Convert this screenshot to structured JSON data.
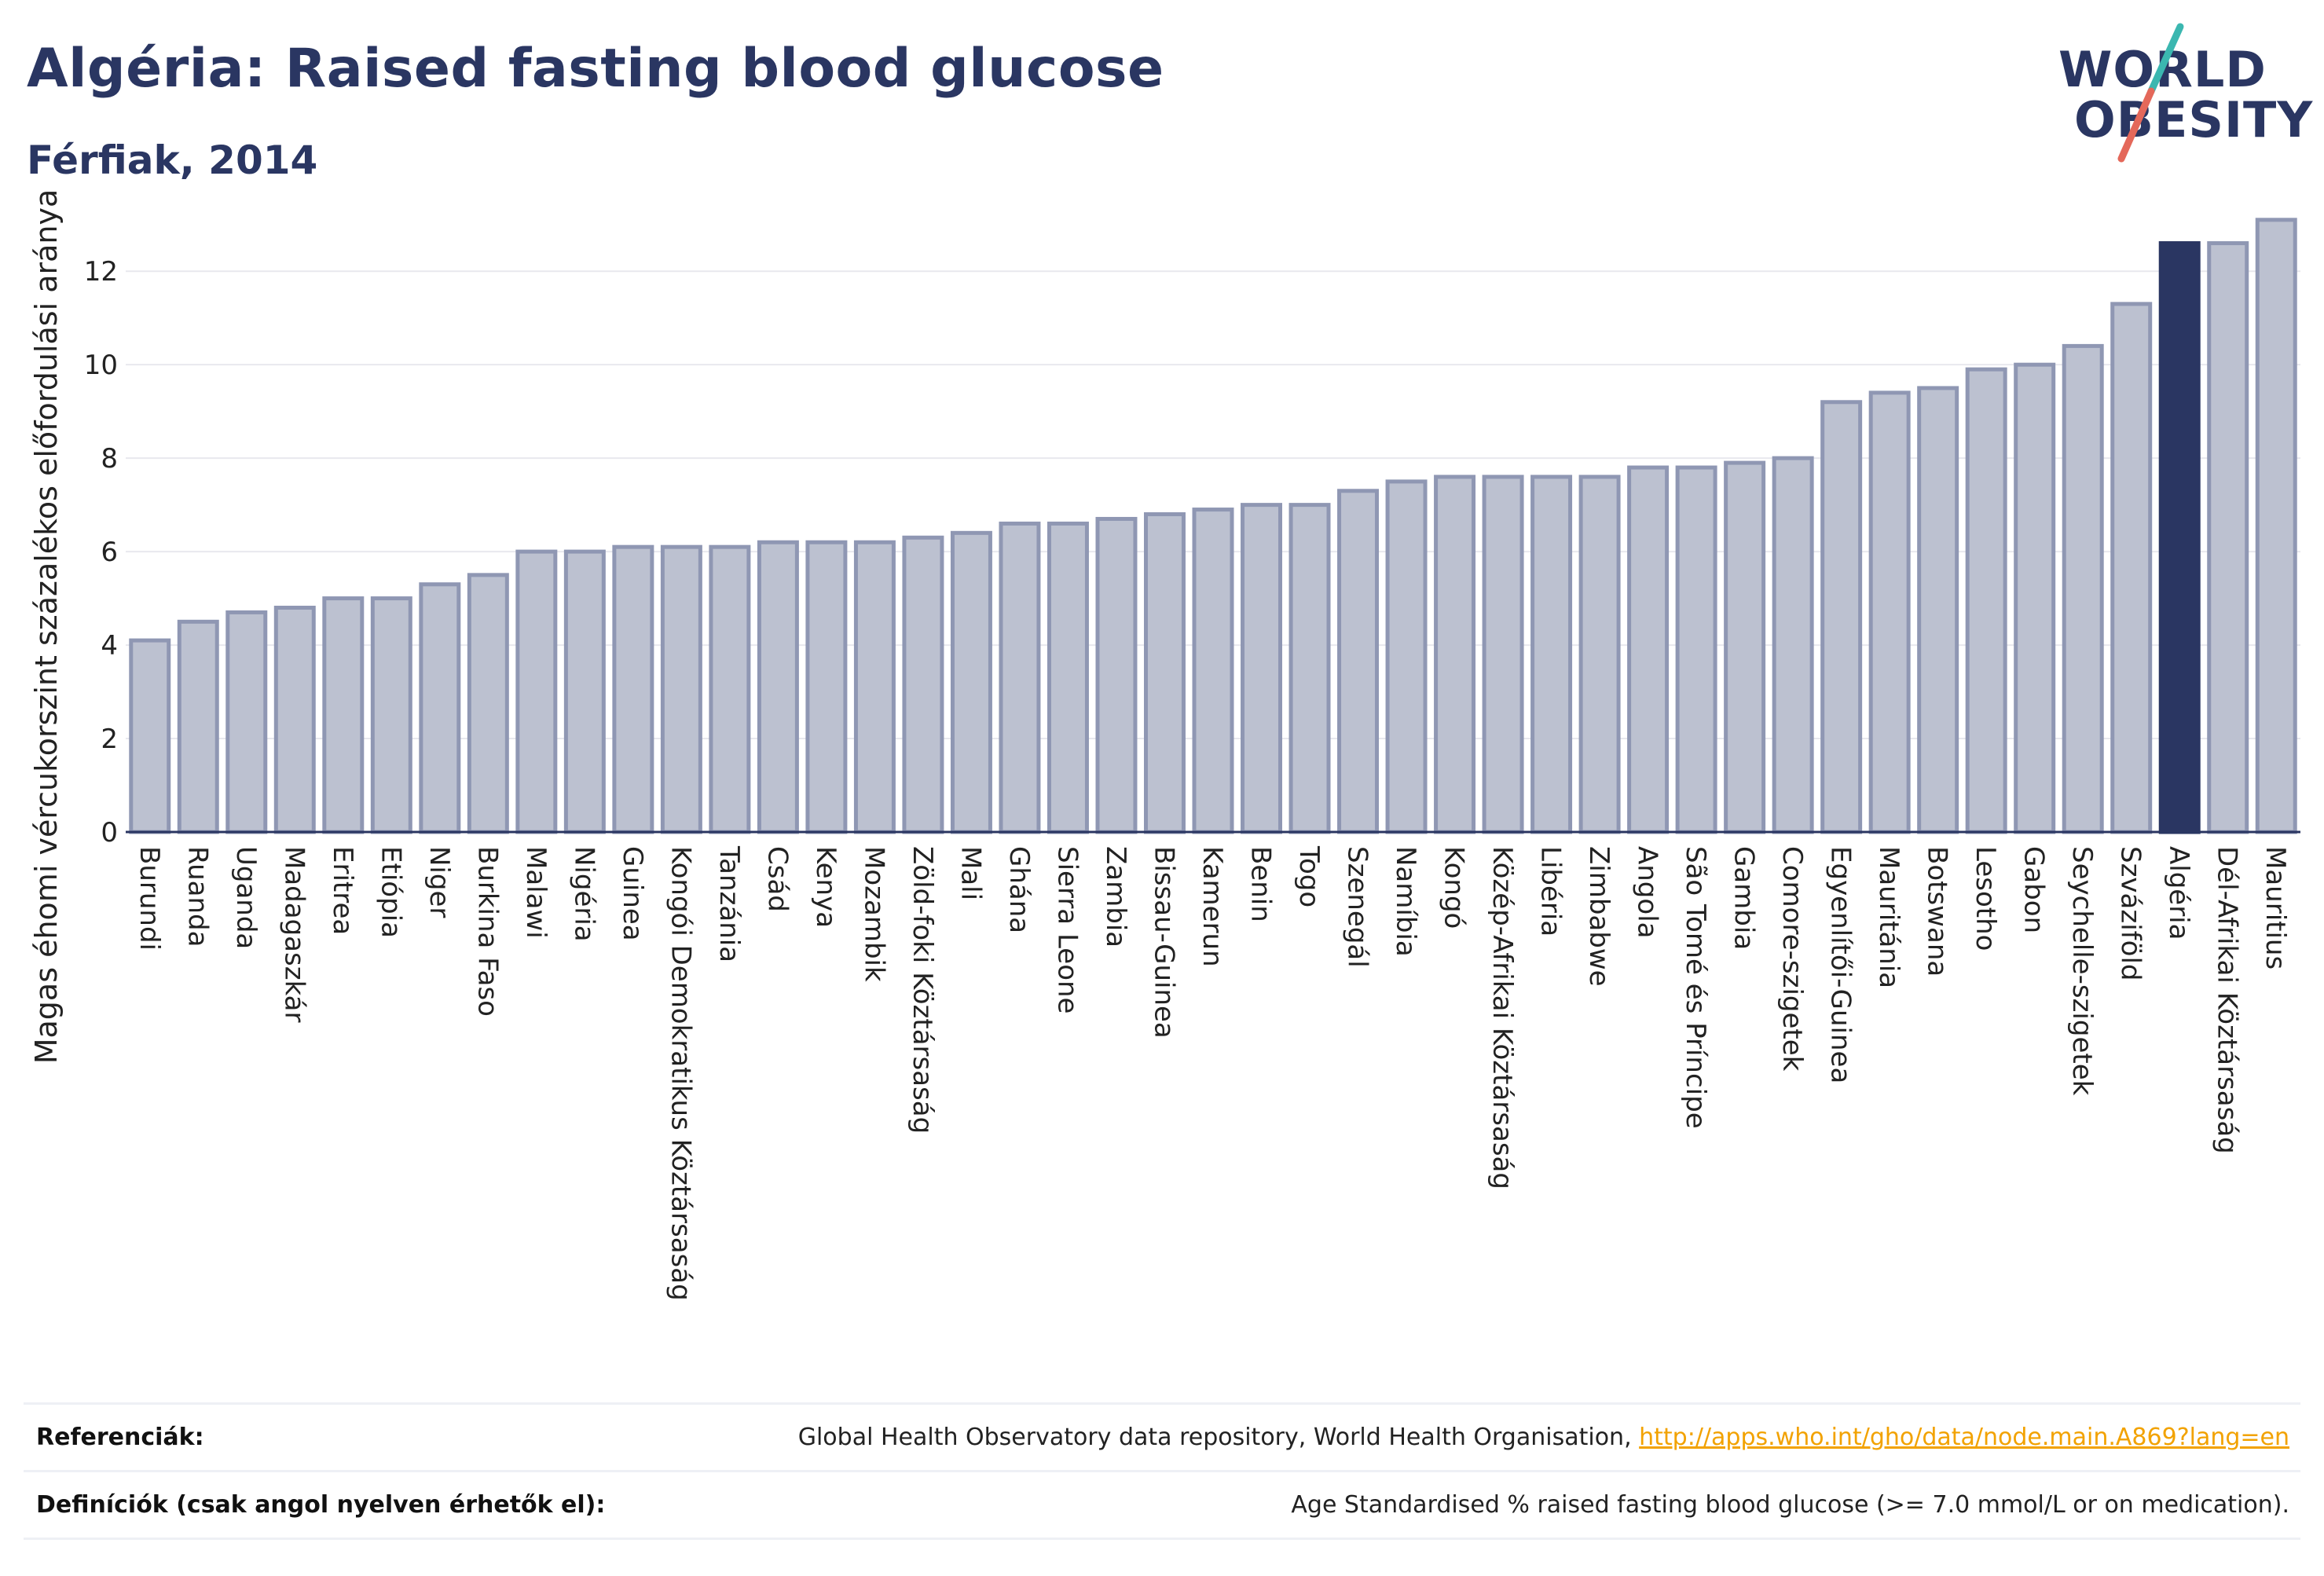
{
  "header": {
    "title": "Algéria: Raised fasting blood glucose",
    "subtitle": "Férfiak, 2014"
  },
  "logo": {
    "line1": "WORLD",
    "line2": "OBESITY",
    "colors": {
      "text": "#2a3662",
      "slash_top": "#3bb7b0",
      "slash_bottom": "#e4685a"
    }
  },
  "chart_data": {
    "type": "bar",
    "ylabel": "Magas éhomi vércukorszint százalékos előfordulási aránya",
    "xlabel": "",
    "ylim": [
      0,
      13.5
    ],
    "yticks": [
      0,
      2,
      4,
      6,
      8,
      10,
      12
    ],
    "grid": true,
    "highlight": "Algéria",
    "colors": {
      "bar_fill": "#bcc1d0",
      "bar_stroke": "#8f97b3",
      "highlight": "#2a3662",
      "grid": "#e8e8ee",
      "axis": "#2a3662"
    },
    "categories": [
      "Burundi",
      "Ruanda",
      "Uganda",
      "Madagaszkár",
      "Eritrea",
      "Etiópia",
      "Niger",
      "Burkina Faso",
      "Malawi",
      "Nigéria",
      "Guinea",
      "Kongói Demokratikus Köztársaság",
      "Tanzánia",
      "Csád",
      "Kenya",
      "Mozambik",
      "Zöld-foki Köztársaság",
      "Mali",
      "Ghána",
      "Sierra Leone",
      "Zambia",
      "Bissau-Guinea",
      "Kamerun",
      "Benin",
      "Togo",
      "Szenegál",
      "Namíbia",
      "Kongó",
      "Közép-Afrikai Köztársaság",
      "Libéria",
      "Zimbabwe",
      "Angola",
      "São Tomé és Príncipe",
      "Gambia",
      "Comore-szigetek",
      "Egyenlítői-Guinea",
      "Mauritánia",
      "Botswana",
      "Lesotho",
      "Gabon",
      "Seychelle-szigetek",
      "Szváziföld",
      "Algéria",
      "Dél-Afrikai Köztársaság",
      "Mauritius"
    ],
    "values": [
      4.1,
      4.5,
      4.7,
      4.8,
      5.0,
      5.0,
      5.3,
      5.5,
      6.0,
      6.0,
      6.1,
      6.1,
      6.1,
      6.2,
      6.2,
      6.2,
      6.3,
      6.4,
      6.6,
      6.6,
      6.7,
      6.8,
      6.9,
      7.0,
      7.0,
      7.3,
      7.5,
      7.6,
      7.6,
      7.6,
      7.6,
      7.8,
      7.8,
      7.9,
      8.0,
      9.2,
      9.4,
      9.5,
      9.9,
      10.0,
      10.4,
      11.3,
      12.6,
      12.6,
      13.1
    ]
  },
  "footer": {
    "references_label": "Referenciák:",
    "references_text": "Global Health Observatory data repository, World Health Organisation, ",
    "references_link": "http://apps.who.int/gho/data/node.main.A869?lang=en",
    "definitions_label": "Definíciók (csak angol nyelven érhetők el):",
    "definitions_text": "Age Standardised % raised fasting blood glucose (>= 7.0 mmol/L or on medication)."
  }
}
